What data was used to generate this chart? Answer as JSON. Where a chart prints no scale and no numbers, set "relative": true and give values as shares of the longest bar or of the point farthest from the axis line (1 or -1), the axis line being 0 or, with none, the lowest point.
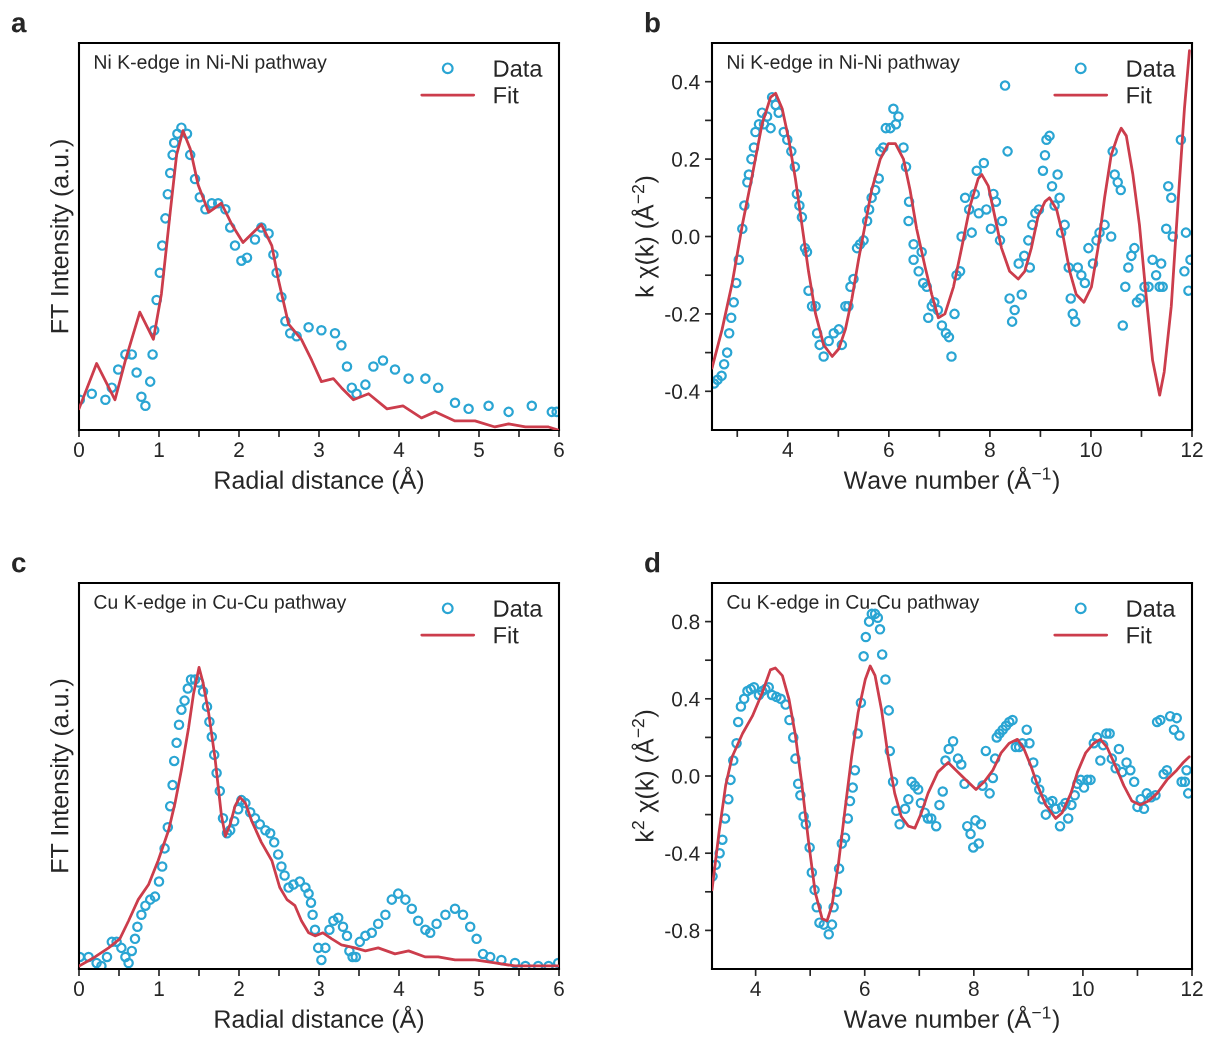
{
  "chart_data": [
    {
      "type": "scatter",
      "title": "a",
      "annotations": [
        "Ni K-edge in Ni-Ni pathway"
      ],
      "xlabel": "Radial distance (Å)",
      "ylabel": "FT Intensity (a.u.)",
      "relative": true,
      "tick_labels": "x",
      "legend": "top right",
      "xlim": [
        0,
        6
      ],
      "xticks": [
        0,
        {
          "value": 0.5,
          "label": null
        },
        1,
        {
          "value": 1.5,
          "label": null
        },
        2,
        {
          "value": 2.5,
          "label": null
        },
        3,
        {
          "value": 3.5,
          "label": null
        },
        4,
        {
          "value": 4.5,
          "label": null
        },
        5,
        {
          "value": 5.5,
          "label": null
        },
        6
      ],
      "series": [
        {
          "name": "Data",
          "type": "scatter",
          "marker": "circle",
          "color": "#2aa5d3",
          "x": [
            0.01,
            0.16,
            0.33,
            0.41,
            0.49,
            0.58,
            0.66,
            0.72,
            0.78,
            0.83,
            0.89,
            0.92,
            0.94,
            0.97,
            1.01,
            1.04,
            1.08,
            1.11,
            1.14,
            1.17,
            1.19,
            1.23,
            1.28,
            1.35,
            1.39,
            1.45,
            1.51,
            1.58,
            1.66,
            1.74,
            1.83,
            1.89,
            1.95,
            2.03,
            2.1,
            2.2,
            2.28,
            2.37,
            2.43,
            2.47,
            2.53,
            2.58,
            2.64,
            2.72,
            2.87,
            3.03,
            3.2,
            3.28,
            3.35,
            3.41,
            3.47,
            3.58,
            3.68,
            3.8,
            3.95,
            4.12,
            4.33,
            4.49,
            4.7,
            4.87,
            5.12,
            5.37,
            5.66,
            5.91,
            5.97
          ],
          "values": [
            0.1,
            0.12,
            0.1,
            0.14,
            0.2,
            0.25,
            0.25,
            0.19,
            0.11,
            0.08,
            0.16,
            0.25,
            0.33,
            0.43,
            0.52,
            0.61,
            0.7,
            0.78,
            0.85,
            0.91,
            0.95,
            0.98,
            1.0,
            0.98,
            0.91,
            0.83,
            0.77,
            0.73,
            0.75,
            0.75,
            0.73,
            0.67,
            0.61,
            0.56,
            0.57,
            0.63,
            0.67,
            0.65,
            0.58,
            0.52,
            0.44,
            0.36,
            0.32,
            0.31,
            0.34,
            0.33,
            0.32,
            0.28,
            0.21,
            0.14,
            0.12,
            0.15,
            0.21,
            0.23,
            0.2,
            0.17,
            0.17,
            0.14,
            0.09,
            0.07,
            0.08,
            0.06,
            0.08,
            0.06,
            0.06
          ]
        },
        {
          "name": "Fit",
          "type": "line",
          "line_style": "solid",
          "color": "#cc3d4c",
          "x": [
            0,
            0.22,
            0.45,
            0.58,
            0.76,
            0.93,
            1.03,
            1.14,
            1.22,
            1.3,
            1.39,
            1.49,
            1.62,
            1.78,
            1.91,
            2.05,
            2.28,
            2.41,
            2.49,
            2.62,
            2.78,
            2.91,
            3.03,
            3.18,
            3.28,
            3.43,
            3.62,
            3.85,
            4.05,
            4.28,
            4.45,
            4.7,
            4.95,
            5.2,
            5.37,
            5.58,
            5.87,
            5.99
          ],
          "values": [
            0.07,
            0.22,
            0.1,
            0.23,
            0.39,
            0.3,
            0.45,
            0.72,
            0.91,
            0.99,
            0.93,
            0.81,
            0.72,
            0.75,
            0.68,
            0.62,
            0.68,
            0.61,
            0.5,
            0.35,
            0.3,
            0.23,
            0.16,
            0.17,
            0.14,
            0.1,
            0.12,
            0.07,
            0.08,
            0.04,
            0.06,
            0.03,
            0.03,
            0.01,
            0.02,
            0.01,
            0.01,
            0.0
          ]
        }
      ]
    },
    {
      "type": "scatter",
      "title": "b",
      "annotations": [
        "Ni K-edge in Ni-Ni pathway"
      ],
      "xlabel": "Wave number (Å$^{−1}$)",
      "ylabel": "k χ(k) (Å$^{−2}$)",
      "legend": "top right",
      "xlim": [
        2.5,
        12
      ],
      "xticks": [
        {
          "value": 3,
          "label": null
        },
        4,
        {
          "value": 5,
          "label": null
        },
        6,
        {
          "value": 7,
          "label": null
        },
        8,
        {
          "value": 9,
          "label": null
        },
        10,
        {
          "value": 11,
          "label": null
        },
        12
      ],
      "ylim": [
        -0.5,
        0.5
      ],
      "yticks": [
        -0.4,
        {
          "value": -0.3,
          "label": null
        },
        -0.2,
        {
          "value": -0.1,
          "label": null
        },
        {
          "value": 0,
          "label": "0.0"
        },
        {
          "value": 0.1,
          "label": null
        },
        0.2,
        {
          "value": 0.3,
          "label": null
        },
        0.4
      ],
      "series": [
        {
          "name": "Data",
          "type": "scatter",
          "marker": "circle",
          "color": "#2aa5d3",
          "x": [
            2.54,
            2.61,
            2.69,
            2.74,
            2.8,
            2.84,
            2.88,
            2.93,
            2.98,
            3.03,
            3.1,
            3.14,
            3.2,
            3.23,
            3.28,
            3.33,
            3.36,
            3.43,
            3.49,
            3.53,
            3.59,
            3.66,
            3.69,
            3.76,
            3.82,
            3.92,
            3.99,
            4.07,
            4.14,
            4.18,
            4.23,
            4.28,
            4.34,
            4.38,
            4.41,
            4.48,
            4.55,
            4.58,
            4.63,
            4.71,
            4.81,
            4.91,
            5.01,
            5.07,
            5.14,
            5.2,
            5.24,
            5.3,
            5.37,
            5.43,
            5.5,
            5.57,
            5.61,
            5.66,
            5.73,
            5.8,
            5.83,
            5.89,
            5.94,
            6.03,
            6.09,
            6.14,
            6.19,
            6.29,
            6.34,
            6.4,
            6.39,
            6.49,
            6.49,
            6.59,
            6.65,
            6.68,
            6.75,
            6.78,
            6.85,
            6.9,
            6.97,
            7.05,
            7.13,
            7.19,
            7.24,
            7.3,
            7.34,
            7.41,
            7.44,
            7.51,
            7.59,
            7.64,
            7.7,
            7.78,
            7.74,
            7.88,
            7.93,
            8.02,
            8.07,
            8.12,
            8.2,
            8.24,
            8.3,
            8.35,
            8.39,
            8.44,
            8.49,
            8.57,
            8.63,
            8.68,
            8.79,
            8.76,
            8.84,
            8.9,
            8.97,
            9.05,
            9.09,
            9.12,
            9.18,
            9.23,
            9.28,
            9.34,
            9.38,
            9.41,
            9.48,
            9.56,
            9.6,
            9.64,
            9.69,
            9.74,
            9.81,
            9.88,
            9.95,
            10.04,
            10.11,
            10.17,
            10.27,
            10.4,
            10.43,
            10.47,
            10.53,
            10.59,
            10.63,
            10.68,
            10.74,
            10.8,
            10.86,
            10.91,
            10.98,
            11.06,
            11.14,
            11.22,
            11.29,
            11.36,
            11.42,
            11.39,
            11.49,
            11.53,
            11.59,
            11.62,
            11.78,
            11.85,
            11.88,
            11.93,
            11.97
          ],
          "values": [
            -0.38,
            -0.37,
            -0.36,
            -0.33,
            -0.3,
            -0.25,
            -0.21,
            -0.17,
            -0.12,
            -0.06,
            0.02,
            0.08,
            0.14,
            0.16,
            0.2,
            0.23,
            0.27,
            0.29,
            0.32,
            0.29,
            0.31,
            0.28,
            0.36,
            0.34,
            0.32,
            0.27,
            0.25,
            0.22,
            0.18,
            0.11,
            0.08,
            0.05,
            -0.03,
            -0.04,
            -0.14,
            -0.18,
            -0.18,
            -0.25,
            -0.28,
            -0.31,
            -0.27,
            -0.25,
            -0.24,
            -0.28,
            -0.18,
            -0.18,
            -0.13,
            -0.11,
            -0.03,
            -0.02,
            -0.01,
            0.04,
            0.07,
            0.1,
            0.12,
            0.15,
            0.22,
            0.23,
            0.28,
            0.28,
            0.33,
            0.29,
            0.31,
            0.23,
            0.18,
            0.09,
            0.04,
            -0.02,
            -0.06,
            -0.09,
            -0.04,
            -0.12,
            -0.13,
            -0.21,
            -0.18,
            -0.17,
            -0.19,
            -0.23,
            -0.25,
            -0.26,
            -0.31,
            -0.2,
            -0.1,
            -0.09,
            0.0,
            0.1,
            0.07,
            0.01,
            0.11,
            0.06,
            0.17,
            0.19,
            0.07,
            0.02,
            0.11,
            0.09,
            -0.01,
            0.04,
            0.39,
            0.22,
            -0.16,
            -0.22,
            -0.19,
            -0.07,
            -0.15,
            -0.05,
            -0.08,
            -0.01,
            0.03,
            0.06,
            0.07,
            0.17,
            0.21,
            0.25,
            0.26,
            0.13,
            0.08,
            0.16,
            0.1,
            0.01,
            0.03,
            -0.08,
            -0.16,
            -0.2,
            -0.22,
            -0.08,
            -0.1,
            -0.12,
            -0.03,
            -0.07,
            -0.01,
            0.01,
            0.03,
            0.0,
            0.22,
            0.16,
            0.14,
            0.12,
            -0.23,
            -0.13,
            -0.08,
            -0.05,
            -0.03,
            -0.17,
            -0.16,
            -0.13,
            -0.13,
            -0.06,
            -0.1,
            -0.13,
            -0.13,
            -0.07,
            0.02,
            0.13,
            0.1,
            0.0,
            0.25,
            -0.09,
            0.01,
            -0.14,
            -0.06
          ]
        },
        {
          "name": "Fit",
          "type": "line",
          "line_style": "solid",
          "color": "#cc3d4c",
          "x": [
            2.5,
            2.7,
            2.9,
            3.1,
            3.3,
            3.49,
            3.66,
            3.76,
            3.89,
            4.02,
            4.15,
            4.28,
            4.41,
            4.55,
            4.71,
            4.88,
            5.01,
            5.14,
            5.27,
            5.4,
            5.53,
            5.66,
            5.83,
            5.99,
            6.13,
            6.29,
            6.42,
            6.55,
            6.72,
            6.85,
            6.98,
            7.11,
            7.28,
            7.44,
            7.61,
            7.77,
            7.84,
            7.97,
            8.1,
            8.23,
            8.39,
            8.56,
            8.69,
            8.82,
            8.95,
            9.09,
            9.18,
            9.32,
            9.45,
            9.58,
            9.71,
            9.86,
            10.01,
            10.14,
            10.27,
            10.4,
            10.53,
            10.6,
            10.7,
            10.83,
            10.96,
            11.09,
            11.22,
            11.36,
            11.45,
            11.59,
            11.72,
            11.85,
            11.95
          ],
          "values": [
            -0.34,
            -0.24,
            -0.12,
            0.03,
            0.16,
            0.29,
            0.36,
            0.37,
            0.33,
            0.25,
            0.15,
            0.03,
            -0.09,
            -0.2,
            -0.28,
            -0.31,
            -0.29,
            -0.24,
            -0.16,
            -0.06,
            0.03,
            0.12,
            0.2,
            0.24,
            0.24,
            0.2,
            0.12,
            0.02,
            -0.08,
            -0.15,
            -0.21,
            -0.2,
            -0.13,
            -0.03,
            0.08,
            0.15,
            0.16,
            0.13,
            0.05,
            -0.03,
            -0.09,
            -0.11,
            -0.09,
            -0.03,
            0.05,
            0.09,
            0.1,
            0.07,
            0.0,
            -0.09,
            -0.15,
            -0.17,
            -0.13,
            -0.03,
            0.1,
            0.21,
            0.26,
            0.28,
            0.26,
            0.16,
            0.03,
            -0.15,
            -0.32,
            -0.41,
            -0.35,
            -0.18,
            0.08,
            0.33,
            0.48
          ]
        }
      ]
    },
    {
      "type": "scatter",
      "title": "c",
      "annotations": [
        "Cu K-edge in Cu-Cu pathway"
      ],
      "xlabel": "Radial distance (Å)",
      "ylabel": "FT Intensity (a.u.)",
      "relative": true,
      "tick_labels": "x",
      "legend": "top right",
      "xlim": [
        0,
        6
      ],
      "xticks": [
        0,
        {
          "value": 0.5,
          "label": null
        },
        1,
        {
          "value": 1.5,
          "label": null
        },
        2,
        {
          "value": 2.5,
          "label": null
        },
        3,
        {
          "value": 3.5,
          "label": null
        },
        4,
        {
          "value": 4.5,
          "label": null
        },
        5,
        {
          "value": 5.5,
          "label": null
        },
        6
      ],
      "series": [
        {
          "name": "Data",
          "type": "scatter",
          "marker": "circle",
          "color": "#2aa5d3",
          "x": [
            0.01,
            0.12,
            0.22,
            0.28,
            0.35,
            0.41,
            0.47,
            0.53,
            0.58,
            0.62,
            0.66,
            0.7,
            0.73,
            0.78,
            0.83,
            0.89,
            0.95,
            1.0,
            1.04,
            1.07,
            1.11,
            1.14,
            1.17,
            1.19,
            1.22,
            1.25,
            1.28,
            1.32,
            1.36,
            1.4,
            1.45,
            1.5,
            1.55,
            1.6,
            1.63,
            1.66,
            1.69,
            1.72,
            1.76,
            1.8,
            1.85,
            1.89,
            1.94,
            1.99,
            2.03,
            2.08,
            2.14,
            2.2,
            2.26,
            2.33,
            2.39,
            2.44,
            2.49,
            2.53,
            2.57,
            2.62,
            2.68,
            2.76,
            2.83,
            2.87,
            2.9,
            2.92,
            2.95,
            2.99,
            3.03,
            3.08,
            3.13,
            3.18,
            3.24,
            3.3,
            3.35,
            3.38,
            3.42,
            3.46,
            3.51,
            3.58,
            3.66,
            3.74,
            3.83,
            3.91,
            3.99,
            4.08,
            4.16,
            4.24,
            4.33,
            4.39,
            4.47,
            4.58,
            4.7,
            4.8,
            4.89,
            4.97,
            5.05,
            5.14,
            5.28,
            5.45,
            5.58,
            5.74,
            5.87,
            5.99
          ],
          "values": [
            0.04,
            0.04,
            0.02,
            0.01,
            0.04,
            0.09,
            0.09,
            0.07,
            0.04,
            0.02,
            0.06,
            0.1,
            0.14,
            0.18,
            0.21,
            0.23,
            0.24,
            0.29,
            0.34,
            0.4,
            0.47,
            0.54,
            0.61,
            0.69,
            0.75,
            0.81,
            0.86,
            0.89,
            0.93,
            0.96,
            0.96,
            0.95,
            0.92,
            0.87,
            0.82,
            0.77,
            0.71,
            0.65,
            0.59,
            0.5,
            0.45,
            0.46,
            0.49,
            0.53,
            0.56,
            0.55,
            0.52,
            0.5,
            0.48,
            0.46,
            0.45,
            0.42,
            0.38,
            0.34,
            0.31,
            0.27,
            0.28,
            0.29,
            0.27,
            0.25,
            0.22,
            0.18,
            0.13,
            0.07,
            0.03,
            0.07,
            0.13,
            0.16,
            0.17,
            0.14,
            0.11,
            0.06,
            0.04,
            0.04,
            0.09,
            0.11,
            0.12,
            0.15,
            0.18,
            0.23,
            0.25,
            0.23,
            0.2,
            0.16,
            0.13,
            0.12,
            0.15,
            0.18,
            0.2,
            0.18,
            0.14,
            0.1,
            0.05,
            0.04,
            0.03,
            0.02,
            0.01,
            0.01,
            0.01,
            0.02
          ]
        },
        {
          "name": "Fit",
          "type": "line",
          "line_style": "solid",
          "color": "#cc3d4c",
          "x": [
            0,
            0.2,
            0.37,
            0.51,
            0.62,
            0.74,
            0.87,
            0.99,
            1.12,
            1.2,
            1.28,
            1.37,
            1.43,
            1.5,
            1.55,
            1.62,
            1.7,
            1.78,
            1.83,
            1.89,
            1.95,
            2.01,
            2.08,
            2.16,
            2.28,
            2.41,
            2.51,
            2.6,
            2.7,
            2.78,
            2.87,
            2.95,
            3.05,
            3.16,
            3.28,
            3.45,
            3.58,
            3.74,
            3.95,
            4.12,
            4.33,
            4.49,
            4.7,
            4.95,
            5.2,
            5.45,
            5.78,
            5.99
          ],
          "values": [
            0.01,
            0.04,
            0.07,
            0.1,
            0.16,
            0.23,
            0.28,
            0.36,
            0.46,
            0.55,
            0.66,
            0.8,
            0.91,
            1.0,
            0.95,
            0.85,
            0.7,
            0.51,
            0.44,
            0.48,
            0.54,
            0.57,
            0.55,
            0.49,
            0.42,
            0.36,
            0.27,
            0.23,
            0.21,
            0.16,
            0.12,
            0.11,
            0.12,
            0.1,
            0.08,
            0.07,
            0.06,
            0.07,
            0.05,
            0.06,
            0.04,
            0.04,
            0.03,
            0.03,
            0.02,
            0.01,
            0.01,
            0.01
          ]
        }
      ]
    },
    {
      "type": "scatter",
      "title": "d",
      "annotations": [
        "Cu K-edge in Cu-Cu pathway"
      ],
      "xlabel": "Wave number (Å$^{−1}$)",
      "ylabel": "k$^{2}$ χ(k) (Å$^{−2}$)",
      "legend": "top right",
      "xlim": [
        3.2,
        12
      ],
      "xticks": [
        4,
        {
          "value": 5,
          "label": null
        },
        6,
        {
          "value": 7,
          "label": null
        },
        8,
        {
          "value": 9,
          "label": null
        },
        10,
        {
          "value": 11,
          "label": null
        },
        12
      ],
      "ylim": [
        -1.0,
        1.0
      ],
      "yticks": [
        -0.8,
        {
          "value": -0.6,
          "label": null
        },
        -0.4,
        {
          "value": -0.2,
          "label": null
        },
        {
          "value": 0,
          "label": "0.0"
        },
        {
          "value": 0.2,
          "label": null
        },
        0.4,
        {
          "value": 0.6,
          "label": null
        },
        0.8
      ],
      "series": [
        {
          "name": "Data",
          "type": "scatter",
          "marker": "circle",
          "color": "#2aa5d3",
          "x": [
            3.21,
            3.27,
            3.34,
            3.39,
            3.44,
            3.5,
            3.54,
            3.59,
            3.65,
            3.68,
            3.73,
            3.79,
            3.85,
            3.91,
            3.97,
            4.06,
            4.12,
            4.18,
            4.24,
            4.3,
            4.38,
            4.46,
            4.55,
            4.62,
            4.69,
            4.73,
            4.78,
            4.82,
            4.88,
            4.92,
            4.99,
            5.03,
            5.08,
            5.12,
            5.17,
            5.25,
            5.34,
            5.4,
            5.43,
            5.49,
            5.53,
            5.58,
            5.64,
            5.69,
            5.73,
            5.78,
            5.82,
            5.87,
            5.93,
            5.98,
            6.02,
            6.08,
            6.13,
            6.19,
            6.24,
            6.28,
            6.32,
            6.38,
            6.44,
            6.46,
            6.52,
            6.58,
            6.64,
            6.74,
            6.8,
            6.86,
            6.92,
            6.98,
            7.03,
            7.1,
            7.16,
            7.22,
            7.31,
            7.37,
            7.43,
            7.48,
            7.54,
            7.62,
            7.71,
            7.77,
            7.83,
            7.88,
            7.94,
            7.99,
            8.03,
            8.09,
            8.13,
            8.16,
            8.22,
            8.29,
            8.35,
            8.39,
            8.42,
            8.47,
            8.53,
            8.59,
            8.65,
            8.71,
            8.77,
            8.83,
            8.89,
            8.97,
            9.02,
            9.09,
            9.14,
            9.2,
            9.26,
            9.32,
            9.38,
            9.44,
            9.5,
            9.58,
            9.62,
            9.68,
            9.73,
            9.79,
            9.85,
            9.9,
            9.96,
            10.02,
            10.08,
            10.14,
            10.2,
            10.26,
            10.32,
            10.37,
            10.43,
            10.49,
            10.53,
            10.6,
            10.66,
            10.72,
            10.8,
            10.87,
            10.94,
            11.0,
            11.06,
            11.12,
            11.17,
            11.25,
            11.33,
            11.36,
            11.42,
            11.48,
            11.54,
            11.6,
            11.67,
            11.72,
            11.77,
            11.81,
            11.87,
            11.9,
            11.93
          ],
          "values": [
            -0.52,
            -0.46,
            -0.4,
            -0.33,
            -0.22,
            -0.12,
            -0.02,
            0.08,
            0.17,
            0.28,
            0.36,
            0.4,
            0.44,
            0.45,
            0.46,
            0.42,
            0.44,
            0.45,
            0.46,
            0.42,
            0.41,
            0.4,
            0.37,
            0.29,
            0.2,
            0.09,
            -0.04,
            -0.1,
            -0.21,
            -0.25,
            -0.37,
            -0.5,
            -0.59,
            -0.68,
            -0.76,
            -0.77,
            -0.82,
            -0.77,
            -0.68,
            -0.6,
            -0.48,
            -0.35,
            -0.32,
            -0.22,
            -0.13,
            -0.06,
            0.03,
            0.22,
            0.38,
            0.62,
            0.72,
            0.8,
            0.84,
            0.84,
            0.82,
            0.76,
            0.63,
            0.5,
            0.34,
            0.13,
            -0.03,
            -0.18,
            -0.25,
            -0.17,
            -0.12,
            -0.03,
            -0.05,
            -0.07,
            -0.14,
            -0.19,
            -0.22,
            -0.22,
            -0.26,
            -0.15,
            -0.08,
            0.08,
            0.14,
            0.18,
            0.09,
            0.06,
            -0.04,
            -0.26,
            -0.3,
            -0.37,
            -0.23,
            -0.35,
            -0.25,
            -0.05,
            0.13,
            -0.09,
            -0.01,
            0.09,
            0.2,
            0.22,
            0.24,
            0.26,
            0.28,
            0.29,
            0.15,
            0.15,
            0.17,
            0.24,
            0.17,
            0.07,
            -0.02,
            -0.07,
            -0.12,
            -0.2,
            -0.14,
            -0.13,
            -0.17,
            -0.26,
            -0.16,
            -0.14,
            -0.22,
            -0.15,
            -0.1,
            -0.04,
            -0.02,
            -0.06,
            -0.02,
            -0.02,
            0.17,
            0.2,
            0.08,
            0.16,
            0.22,
            0.22,
            0.09,
            0.04,
            0.14,
            0.02,
            0.07,
            0.03,
            -0.03,
            -0.16,
            -0.12,
            -0.17,
            -0.09,
            -0.11,
            -0.1,
            0.28,
            0.29,
            0.01,
            0.03,
            0.31,
            0.24,
            0.3,
            0.21,
            -0.03,
            -0.03,
            0.03,
            -0.09
          ]
        },
        {
          "name": "Fit",
          "type": "line",
          "line_style": "solid",
          "color": "#cc3d4c",
          "x": [
            3.2,
            3.33,
            3.45,
            3.57,
            3.76,
            3.94,
            4.12,
            4.27,
            4.36,
            4.49,
            4.61,
            4.73,
            4.85,
            4.97,
            5.09,
            5.22,
            5.31,
            5.4,
            5.52,
            5.64,
            5.76,
            5.88,
            6.01,
            6.1,
            6.19,
            6.31,
            6.43,
            6.55,
            6.67,
            6.8,
            6.92,
            7.04,
            7.16,
            7.34,
            7.53,
            7.71,
            7.89,
            8.04,
            8.19,
            8.35,
            8.5,
            8.65,
            8.8,
            8.92,
            9.05,
            9.17,
            9.32,
            9.5,
            9.62,
            9.78,
            9.9,
            10.05,
            10.2,
            10.32,
            10.44,
            10.6,
            10.75,
            10.9,
            11.05,
            11.2,
            11.36,
            11.54,
            11.72,
            11.84,
            11.95
          ],
          "values": [
            -0.59,
            -0.29,
            -0.05,
            0.1,
            0.22,
            0.31,
            0.43,
            0.55,
            0.56,
            0.52,
            0.4,
            0.21,
            -0.05,
            -0.34,
            -0.6,
            -0.74,
            -0.75,
            -0.67,
            -0.45,
            -0.17,
            0.1,
            0.33,
            0.5,
            0.57,
            0.52,
            0.34,
            0.1,
            -0.09,
            -0.21,
            -0.26,
            -0.27,
            -0.19,
            -0.09,
            0.02,
            0.07,
            0.02,
            -0.03,
            -0.07,
            -0.03,
            0.03,
            0.12,
            0.17,
            0.19,
            0.14,
            0.05,
            -0.05,
            -0.15,
            -0.22,
            -0.19,
            -0.09,
            0.02,
            0.12,
            0.17,
            0.19,
            0.15,
            0.05,
            -0.05,
            -0.13,
            -0.15,
            -0.13,
            -0.09,
            -0.02,
            0.03,
            0.07,
            0.1
          ]
        }
      ]
    }
  ]
}
